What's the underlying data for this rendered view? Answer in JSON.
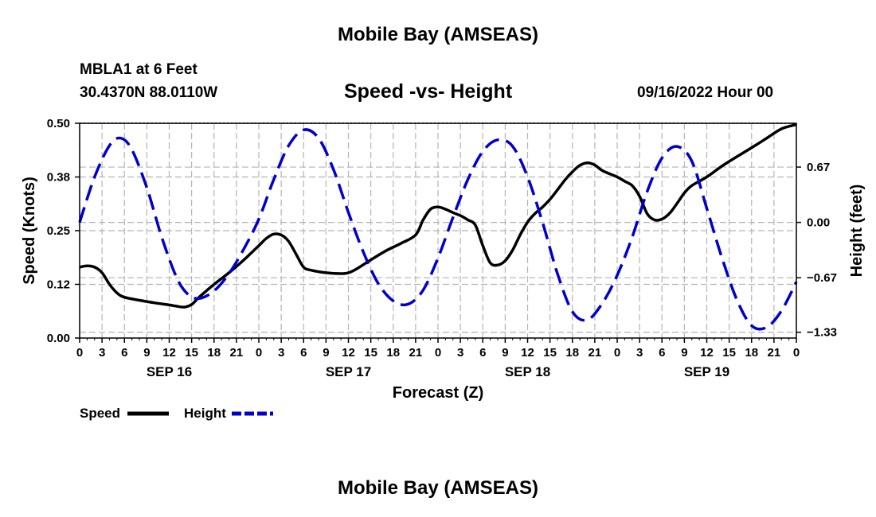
{
  "header": {
    "title": "Mobile Bay (AMSEAS)",
    "station": "MBLA1 at 6 Feet",
    "coords": "30.4370N  88.0110W",
    "subtitle": "Speed -vs- Height",
    "datetime": "09/16/2022 Hour 00",
    "bottom_title": "Mobile Bay (AMSEAS)"
  },
  "chart_data": {
    "type": "line",
    "title": "Speed -vs- Height",
    "xlabel": "Forecast (Z)",
    "ylabel": "Speed (Knots)",
    "y2label": "Height (feet)",
    "grid": true,
    "xlim": [
      0,
      96
    ],
    "ylim": [
      0,
      0.5
    ],
    "y2lim": [
      -1.4,
      1.2
    ],
    "x_ticks": [
      0,
      3,
      6,
      9,
      12,
      15,
      18,
      21,
      24,
      27,
      30,
      33,
      36,
      39,
      42,
      45,
      48,
      51,
      54,
      57,
      60,
      63,
      66,
      69,
      72,
      75,
      78,
      81,
      84,
      87,
      90,
      93,
      96
    ],
    "x_tick_labels": [
      "0",
      "3",
      "6",
      "9",
      "12",
      "15",
      "18",
      "21",
      "0",
      "3",
      "6",
      "9",
      "12",
      "15",
      "18",
      "21",
      "0",
      "3",
      "6",
      "9",
      "12",
      "15",
      "18",
      "21",
      "0",
      "3",
      "6",
      "9",
      "12",
      "15",
      "18",
      "21",
      "0"
    ],
    "y_ticks": [
      0,
      0.125,
      0.25,
      0.375,
      0.5
    ],
    "y_tick_labels": [
      "0.00",
      "0.12",
      "0.25",
      "0.38",
      "0.50"
    ],
    "y2_ticks": [
      -1.33,
      -0.67,
      0,
      0.67
    ],
    "y2_tick_labels": [
      "-1.33",
      "-0.67",
      "0.00",
      "0.67"
    ],
    "day_labels": [
      {
        "x": 12,
        "label": "SEP 16"
      },
      {
        "x": 36,
        "label": "SEP 17"
      },
      {
        "x": 60,
        "label": "SEP 18"
      },
      {
        "x": 84,
        "label": "SEP 19"
      }
    ],
    "series": [
      {
        "name": "Speed",
        "axis": "left",
        "color": "#000000",
        "style": "solid",
        "points": [
          [
            0,
            0.165
          ],
          [
            1,
            0.168
          ],
          [
            2,
            0.165
          ],
          [
            3,
            0.152
          ],
          [
            4,
            0.125
          ],
          [
            5,
            0.105
          ],
          [
            6,
            0.095
          ],
          [
            8,
            0.088
          ],
          [
            10,
            0.082
          ],
          [
            12,
            0.077
          ],
          [
            13,
            0.074
          ],
          [
            14,
            0.072
          ],
          [
            15,
            0.078
          ],
          [
            16,
            0.095
          ],
          [
            18,
            0.125
          ],
          [
            20,
            0.152
          ],
          [
            22,
            0.182
          ],
          [
            24,
            0.215
          ],
          [
            25,
            0.232
          ],
          [
            26,
            0.242
          ],
          [
            27,
            0.24
          ],
          [
            28,
            0.225
          ],
          [
            29,
            0.195
          ],
          [
            30,
            0.165
          ],
          [
            31,
            0.158
          ],
          [
            33,
            0.152
          ],
          [
            35,
            0.15
          ],
          [
            36,
            0.152
          ],
          [
            37,
            0.16
          ],
          [
            39,
            0.182
          ],
          [
            41,
            0.203
          ],
          [
            43,
            0.22
          ],
          [
            45,
            0.24
          ],
          [
            46,
            0.275
          ],
          [
            47,
            0.3
          ],
          [
            48,
            0.305
          ],
          [
            49,
            0.3
          ],
          [
            50,
            0.292
          ],
          [
            51,
            0.285
          ],
          [
            52,
            0.275
          ],
          [
            53,
            0.263
          ],
          [
            54,
            0.215
          ],
          [
            55,
            0.175
          ],
          [
            56,
            0.17
          ],
          [
            57,
            0.18
          ],
          [
            58,
            0.205
          ],
          [
            59,
            0.24
          ],
          [
            60,
            0.27
          ],
          [
            61,
            0.29
          ],
          [
            62,
            0.305
          ],
          [
            63,
            0.323
          ],
          [
            64,
            0.345
          ],
          [
            65,
            0.368
          ],
          [
            66,
            0.387
          ],
          [
            67,
            0.402
          ],
          [
            68,
            0.408
          ],
          [
            69,
            0.403
          ],
          [
            70,
            0.39
          ],
          [
            72,
            0.375
          ],
          [
            73,
            0.365
          ],
          [
            74,
            0.355
          ],
          [
            75,
            0.33
          ],
          [
            76,
            0.29
          ],
          [
            77,
            0.275
          ],
          [
            78,
            0.277
          ],
          [
            79,
            0.29
          ],
          [
            80,
            0.313
          ],
          [
            81,
            0.338
          ],
          [
            82,
            0.355
          ],
          [
            84,
            0.375
          ],
          [
            86,
            0.4
          ],
          [
            88,
            0.422
          ],
          [
            90,
            0.443
          ],
          [
            92,
            0.465
          ],
          [
            94,
            0.487
          ],
          [
            96,
            0.497
          ]
        ]
      },
      {
        "name": "Height",
        "axis": "right",
        "color": "#0000cc",
        "style": "dashed",
        "points": [
          [
            0,
            0.0
          ],
          [
            2,
            0.55
          ],
          [
            4,
            0.93
          ],
          [
            5.5,
            1.02
          ],
          [
            7,
            0.88
          ],
          [
            9,
            0.42
          ],
          [
            11,
            -0.18
          ],
          [
            13,
            -0.67
          ],
          [
            14.5,
            -0.87
          ],
          [
            16,
            -0.92
          ],
          [
            18,
            -0.83
          ],
          [
            20,
            -0.62
          ],
          [
            22,
            -0.32
          ],
          [
            24,
            0.04
          ],
          [
            26,
            0.52
          ],
          [
            28,
            0.93
          ],
          [
            30,
            1.12
          ],
          [
            32,
            1.02
          ],
          [
            34,
            0.64
          ],
          [
            36,
            0.12
          ],
          [
            38,
            -0.36
          ],
          [
            40,
            -0.74
          ],
          [
            42,
            -0.95
          ],
          [
            44,
            -0.99
          ],
          [
            46,
            -0.82
          ],
          [
            48,
            -0.43
          ],
          [
            50,
            0.06
          ],
          [
            52,
            0.52
          ],
          [
            54,
            0.86
          ],
          [
            56,
            1.0
          ],
          [
            58,
            0.92
          ],
          [
            60,
            0.55
          ],
          [
            62,
            0.0
          ],
          [
            64,
            -0.62
          ],
          [
            66,
            -1.08
          ],
          [
            68,
            -1.18
          ],
          [
            70,
            -0.98
          ],
          [
            72,
            -0.64
          ],
          [
            74,
            -0.18
          ],
          [
            76,
            0.37
          ],
          [
            78,
            0.78
          ],
          [
            80,
            0.92
          ],
          [
            82,
            0.74
          ],
          [
            84,
            0.17
          ],
          [
            86,
            -0.42
          ],
          [
            88,
            -0.93
          ],
          [
            90,
            -1.25
          ],
          [
            92,
            -1.27
          ],
          [
            94,
            -1.07
          ],
          [
            96,
            -0.72
          ]
        ]
      }
    ]
  },
  "legend": {
    "speed_label": "Speed",
    "height_label": "Height"
  }
}
